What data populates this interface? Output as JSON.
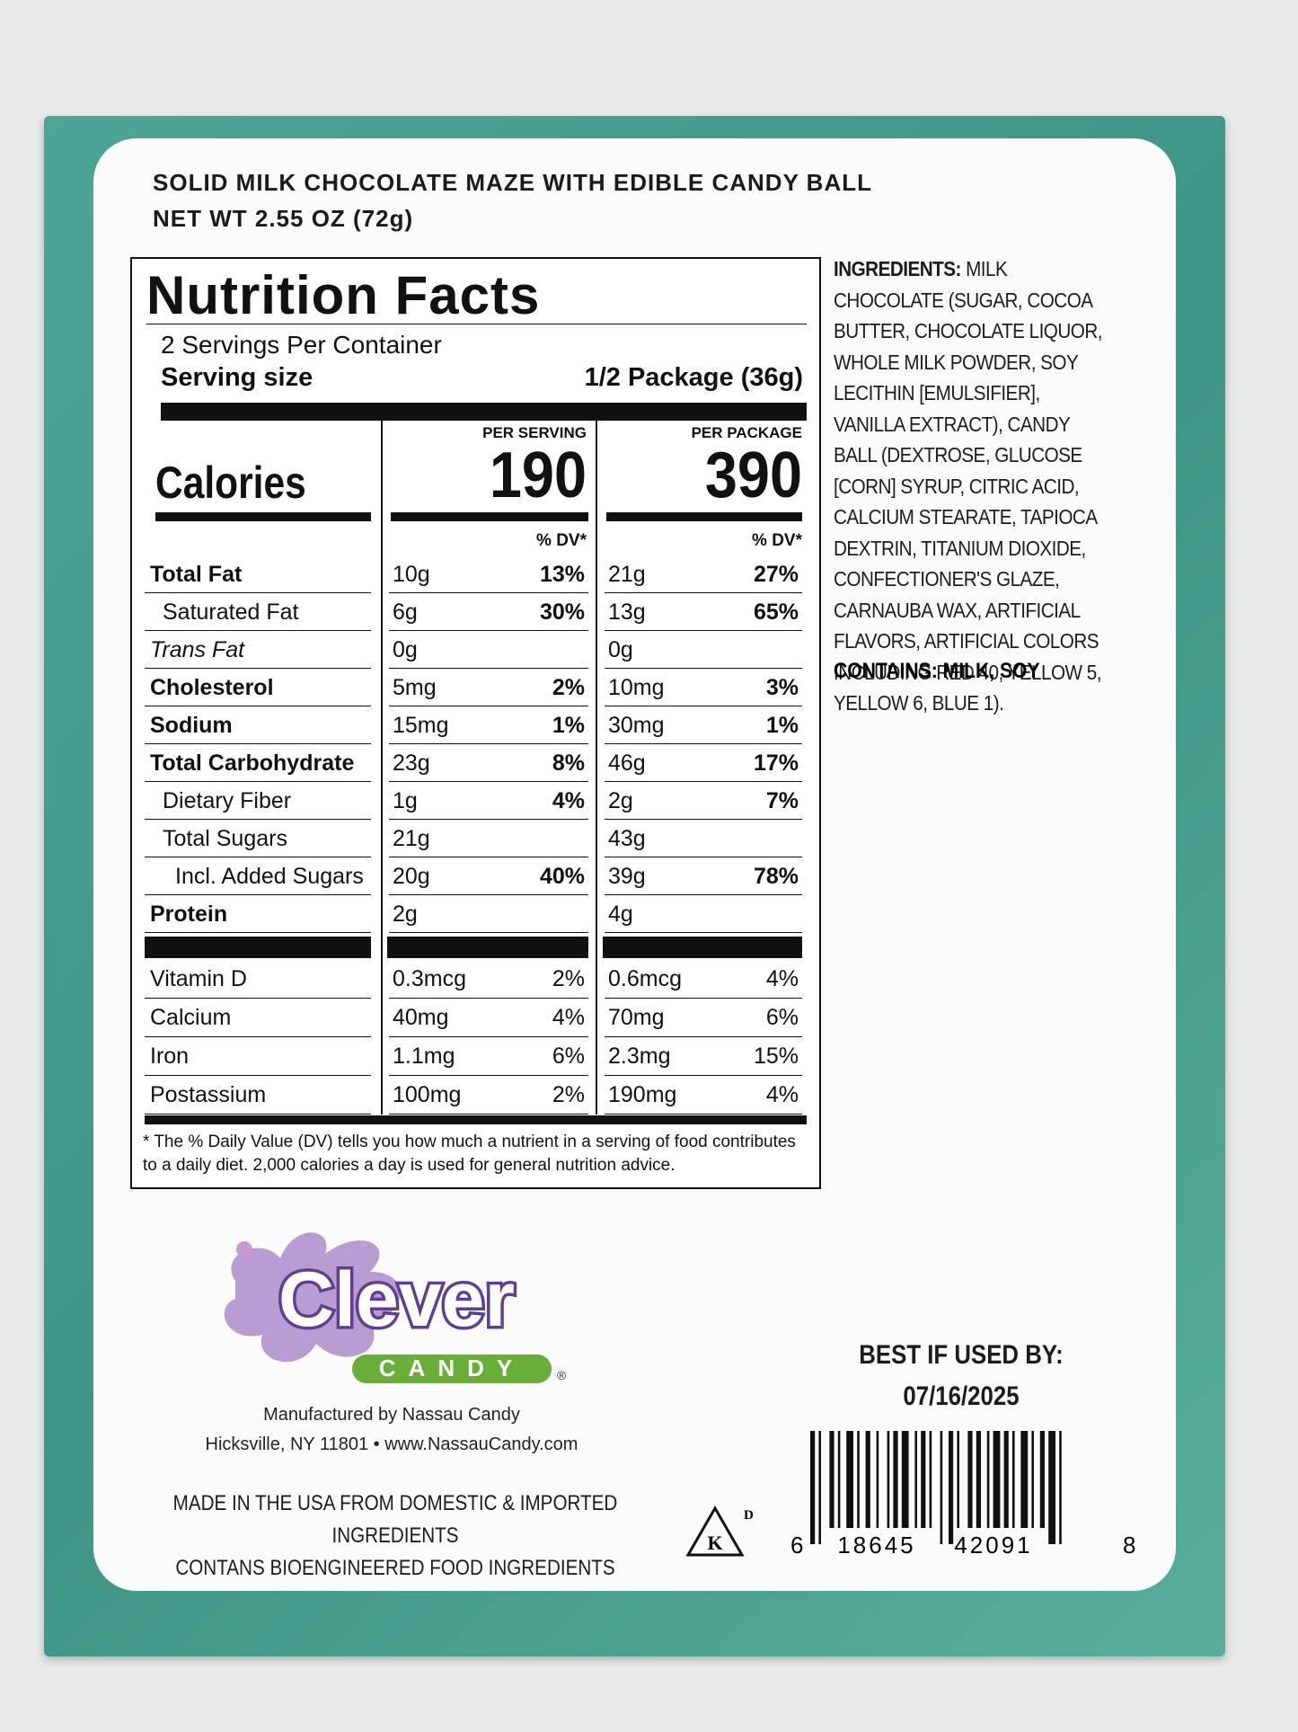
{
  "header": {
    "product_name": "SOLID MILK CHOCOLATE MAZE WITH EDIBLE CANDY BALL",
    "net_weight": "NET WT 2.55 OZ (72g)"
  },
  "nutrition_facts": {
    "title": "Nutrition Facts",
    "servings_per_container": "2 Servings Per Container",
    "serving_size_label": "Serving size",
    "serving_size": "1/2 Package (36g)",
    "columns": [
      "PER SERVING",
      "PER PACKAGE"
    ],
    "calories_label": "Calories",
    "calories": [
      190,
      390
    ],
    "dv_header": "% DV*",
    "rows": [
      {
        "name": "Total Fat",
        "values": [
          "10g",
          "13%",
          "21g",
          "27%"
        ]
      },
      {
        "name": "Saturated Fat",
        "values": [
          "6g",
          "30%",
          "13g",
          "65%"
        ]
      },
      {
        "name": "Trans Fat",
        "values": [
          "0g",
          null,
          "0g",
          null
        ]
      },
      {
        "name": "Cholesterol",
        "values": [
          "5mg",
          "2%",
          "10mg",
          "3%"
        ]
      },
      {
        "name": "Sodium",
        "values": [
          "15mg",
          "1%",
          "30mg",
          "1%"
        ]
      },
      {
        "name": "Total Carbohydrate",
        "values": [
          "23g",
          "8%",
          "46g",
          "17%"
        ]
      },
      {
        "name": "Dietary Fiber",
        "values": [
          "1g",
          "4%",
          "2g",
          "7%"
        ]
      },
      {
        "name": "Total Sugars",
        "values": [
          "21g",
          null,
          "43g",
          null
        ]
      },
      {
        "name": "Incl. Added Sugars",
        "values": [
          "20g",
          "40%",
          "39g",
          "78%"
        ]
      },
      {
        "name": "Protein",
        "values": [
          "2g",
          null,
          "4g",
          null
        ]
      }
    ],
    "vitamins": [
      {
        "name": "Vitamin D",
        "values": [
          "0.3mcg",
          "2%",
          "0.6mcg",
          "4%"
        ]
      },
      {
        "name": "Calcium",
        "values": [
          "40mg",
          "4%",
          "70mg",
          "6%"
        ]
      },
      {
        "name": "Iron",
        "values": [
          "1.1mg",
          "6%",
          "2.3mg",
          "15%"
        ]
      },
      {
        "name": "Postassium",
        "values": [
          "100mg",
          "2%",
          "190mg",
          "4%"
        ]
      }
    ],
    "footnote": "* The % Daily Value (DV) tells you how much a nutrient in a serving of food contributes to a daily diet. 2,000 calories a day is used for general nutrition advice."
  },
  "ingredients": {
    "label": "INGREDIENTS:",
    "text": "MILK CHOCOLATE (SUGAR, COCOA BUTTER, CHOCOLATE LIQUOR, WHOLE MILK POWDER, SOY LECITHIN [EMULSIFIER], VANILLA EXTRACT), CANDY BALL (DEXTROSE, GLUCOSE [CORN] SYRUP, CITRIC ACID, CALCIUM STEARATE, TAPIOCA DEXTRIN, TITANIUM DIOXIDE, CONFECTIONER'S GLAZE, CARNAUBA WAX, ARTIFICIAL FLAVORS, ARTIFICIAL COLORS INCLUDING RED 40, YELLOW 5, YELLOW 6, BLUE 1)."
  },
  "contains": "CONTAINS: MILK, SOY",
  "brand": {
    "name": "Clever",
    "sub": "CANDY",
    "registered": "®"
  },
  "manufacturer": [
    "Manufactured by Nassau Candy",
    "Hicksville, NY 11801 • www.NassauCandy.com"
  ],
  "origin": [
    "MADE IN THE USA FROM DOMESTIC & IMPORTED INGREDIENTS",
    "CONTANS BIOENGINEERED FOOD INGREDIENTS"
  ],
  "kosher": {
    "symbol": "K",
    "mark": "D"
  },
  "best_by": {
    "label": "BEST IF USED BY:",
    "date": "07/16/2025"
  },
  "barcode": {
    "digits": [
      "6",
      "18645",
      "42091",
      "8"
    ]
  }
}
